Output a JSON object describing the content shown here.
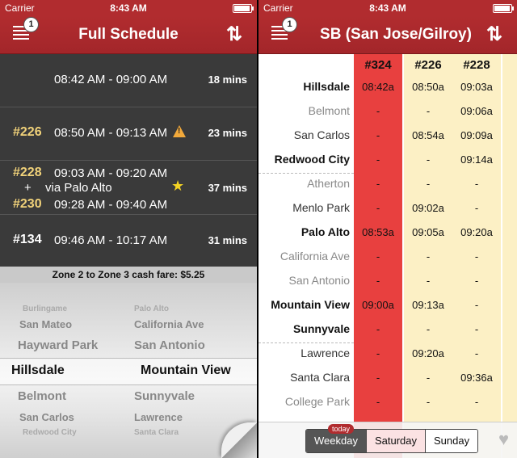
{
  "status_bar": {
    "carrier": "Carrier",
    "time": "8:43 AM"
  },
  "left": {
    "title": "Full Schedule",
    "menu_badge": "1",
    "trips": [
      {
        "number": "",
        "times": "08:42 AM - 09:00 AM",
        "duration": "18 mins"
      },
      {
        "number": "#226",
        "times": "08:50 AM - 09:13 AM",
        "duration": "23 mins",
        "icon": "warning-icon"
      },
      {
        "number": "#228",
        "times": "09:03 AM - 09:20 AM",
        "duration": "37 mins",
        "via": "via Palo Alto",
        "transfer_symbol": "+",
        "number2": "#230",
        "times2": "09:28 AM - 09:40 AM",
        "icon": "star-icon"
      },
      {
        "number": "#134",
        "times": "09:46 AM - 10:17 AM",
        "duration": "31 mins"
      }
    ],
    "fare": "Zone 2 to Zone 3 cash fare: $5.25",
    "picker": {
      "from": [
        "Burlingame",
        "San Mateo",
        "Hayward Park",
        "Hillsdale",
        "Belmont",
        "San Carlos",
        "Redwood City"
      ],
      "to": [
        "Palo Alto",
        "California Ave",
        "San Antonio",
        "Mountain View",
        "Sunnyvale",
        "Lawrence",
        "Santa Clara"
      ],
      "selected_from": "Hillsdale",
      "selected_to": "Mountain View"
    }
  },
  "right": {
    "title": "SB (San Jose/Gilroy)",
    "menu_badge": "1",
    "columns": [
      "#324",
      "#226",
      "#228"
    ],
    "column_colors": [
      "#e8403f",
      "#fcf0c5",
      "#fcf0c5"
    ],
    "stations": [
      {
        "name": "Hillsdale",
        "style": "bold",
        "times": [
          "08:42a",
          "08:50a",
          "09:03a"
        ]
      },
      {
        "name": "Belmont",
        "style": "dim",
        "times": [
          "-",
          "-",
          "09:06a"
        ]
      },
      {
        "name": "San Carlos",
        "style": "normal",
        "times": [
          "-",
          "08:54a",
          "09:09a"
        ]
      },
      {
        "name": "Redwood City",
        "style": "bold",
        "times": [
          "-",
          "-",
          "09:14a"
        ]
      },
      {
        "name": "Atherton",
        "style": "dim",
        "times": [
          "-",
          "-",
          "-"
        ]
      },
      {
        "name": "Menlo Park",
        "style": "normal",
        "times": [
          "-",
          "09:02a",
          "-"
        ]
      },
      {
        "name": "Palo Alto",
        "style": "bold",
        "times": [
          "08:53a",
          "09:05a",
          "09:20a"
        ]
      },
      {
        "name": "California Ave",
        "style": "dim",
        "times": [
          "-",
          "-",
          "-"
        ]
      },
      {
        "name": "San Antonio",
        "style": "dim",
        "times": [
          "-",
          "-",
          "-"
        ]
      },
      {
        "name": "Mountain View",
        "style": "bold",
        "times": [
          "09:00a",
          "09:13a",
          "-"
        ]
      },
      {
        "name": "Sunnyvale",
        "style": "bold",
        "times": [
          "-",
          "-",
          "-"
        ]
      },
      {
        "name": "Lawrence",
        "style": "normal",
        "times": [
          "-",
          "09:20a",
          "-"
        ]
      },
      {
        "name": "Santa Clara",
        "style": "normal",
        "times": [
          "-",
          "-",
          "09:36a"
        ]
      },
      {
        "name": "College Park",
        "style": "dim",
        "times": [
          "-",
          "-",
          "-"
        ]
      }
    ],
    "tabs": [
      "Weekday",
      "Saturday",
      "Sunday"
    ],
    "today_label": "today",
    "active_tab": "Weekday"
  },
  "colors": {
    "brand": "#b12c2f",
    "dark_bg": "#3a3a3a",
    "highlight_col": "#e8403f",
    "alt_col": "#fcf0c5"
  }
}
